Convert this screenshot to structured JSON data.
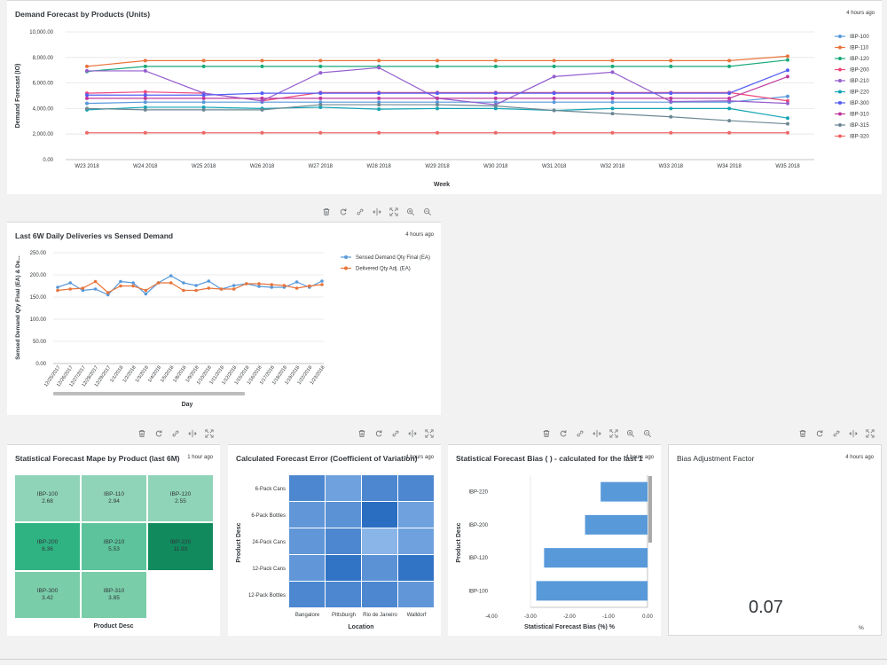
{
  "cards": {
    "demand": {
      "title": "Demand Forecast by Products (Units)",
      "timestamp": "4 hours ago"
    },
    "deliveries": {
      "title": "Last 6W Daily Deliveries vs Sensed Demand",
      "timestamp": "4 hours ago"
    },
    "mape": {
      "title": "Statistical Forecast Mape by Product (last 6M)",
      "timestamp": "1 hour ago"
    },
    "error": {
      "title": "Calculated Forecast Error (Coefficient of Variation)",
      "timestamp": "4 hours ago"
    },
    "bias": {
      "title": "Statistical Forecast Bias ( ) - calculated for the last 1",
      "timestamp": "4 hours ago"
    },
    "adjust": {
      "title": "Bias Adjustment Factor",
      "timestamp": "4 hours ago",
      "value": "0.07",
      "unit": "%"
    }
  },
  "toolbar_icons": {
    "full": [
      "delete-icon",
      "refresh-icon",
      "link-icon",
      "resize-icon",
      "fullscreen-icon",
      "zoom-in-icon",
      "zoom-out-icon"
    ],
    "basic": [
      "delete-icon",
      "refresh-icon",
      "link-icon",
      "resize-icon",
      "fullscreen-icon"
    ]
  },
  "colors": {
    "IBP-100": "#5899da",
    "IBP-110": "#e8743b",
    "IBP-120": "#19a979",
    "IBP-200": "#ed4a7b",
    "IBP-210": "#945ecf",
    "IBP-220": "#13a4b4",
    "IBP-300": "#525df4",
    "IBP-310": "#bf399e",
    "IBP-315": "#6c8893",
    "IBP-320": "#ee6868",
    "sensed": "#5899da",
    "delivered": "#e8743b",
    "bias_bar": "#5899da"
  },
  "chart_data": [
    {
      "type": "line",
      "title": "Demand Forecast by Products (Units)",
      "xlabel": "Week",
      "ylabel": "Demand Forecast (IO)",
      "ylim": [
        0,
        10000
      ],
      "yticks": [
        "0.00",
        "2,000.00",
        "4,000.00",
        "6,000.00",
        "8,000.00",
        "10,000.00"
      ],
      "categories": [
        "W23 2018",
        "W24 2018",
        "W25 2018",
        "W26 2018",
        "W27 2018",
        "W28 2018",
        "W29 2018",
        "W30 2018",
        "W31 2018",
        "W32 2018",
        "W33 2018",
        "W34 2018",
        "W35 2018"
      ],
      "legend": "right",
      "series": [
        {
          "name": "IBP-100",
          "values": [
            4400,
            4500,
            4500,
            4500,
            4500,
            4500,
            4500,
            4500,
            4500,
            4500,
            4500,
            4500,
            4950
          ]
        },
        {
          "name": "IBP-110",
          "values": [
            7300,
            7750,
            7750,
            7750,
            7750,
            7750,
            7750,
            7750,
            7750,
            7750,
            7750,
            7750,
            8100
          ]
        },
        {
          "name": "IBP-120",
          "values": [
            6900,
            7300,
            7300,
            7300,
            7300,
            7300,
            7300,
            7300,
            7300,
            7300,
            7300,
            7300,
            7800
          ]
        },
        {
          "name": "IBP-200",
          "values": [
            5200,
            5300,
            5200,
            4600,
            5250,
            5250,
            5250,
            5250,
            5250,
            5250,
            5250,
            5250,
            4600
          ]
        },
        {
          "name": "IBP-210",
          "values": [
            6950,
            6950,
            5200,
            4600,
            6800,
            7200,
            4800,
            4300,
            6500,
            6850,
            4550,
            4600,
            4400
          ]
        },
        {
          "name": "IBP-220",
          "values": [
            3900,
            4100,
            4100,
            4000,
            4100,
            3950,
            4000,
            4000,
            3850,
            4000,
            4000,
            4000,
            3250
          ]
        },
        {
          "name": "IBP-300",
          "values": [
            5050,
            5050,
            5050,
            5200,
            5200,
            5200,
            5200,
            5200,
            5200,
            5200,
            5200,
            5200,
            7000
          ]
        },
        {
          "name": "IBP-310",
          "values": [
            4800,
            4800,
            4800,
            4800,
            4800,
            4800,
            4800,
            4800,
            4800,
            4800,
            4800,
            4800,
            6500
          ]
        },
        {
          "name": "IBP-315",
          "values": [
            4000,
            3900,
            3900,
            3900,
            4300,
            4300,
            4300,
            4200,
            3850,
            3600,
            3350,
            3050,
            2800
          ]
        },
        {
          "name": "IBP-320",
          "values": [
            2100,
            2100,
            2100,
            2100,
            2100,
            2100,
            2100,
            2100,
            2100,
            2100,
            2100,
            2100,
            2100
          ]
        }
      ]
    },
    {
      "type": "line",
      "title": "Last 6W Daily Deliveries vs Sensed Demand",
      "xlabel": "Day",
      "ylabel": "Sensed Demand Qty Final (EA) & De...",
      "ylim": [
        0,
        250
      ],
      "yticks": [
        "0.00",
        "50.00",
        "100.00",
        "150.00",
        "200.00",
        "250.00"
      ],
      "legend": "right",
      "x": [
        "12/25/2017",
        "12/26/2017",
        "12/27/2017",
        "12/28/2017",
        "12/29/2017",
        "1/1/2018",
        "1/2/2018",
        "1/3/2018",
        "1/4/2018",
        "1/5/2018",
        "1/8/2018",
        "1/9/2018",
        "1/10/2018",
        "1/11/2018",
        "1/12/2018",
        "1/15/2018",
        "1/16/2018",
        "1/17/2018",
        "1/18/2018",
        "1/19/2018",
        "1/22/2018",
        "1/23/2018"
      ],
      "series": [
        {
          "name": "Sensed Demand Qty Final (EA)",
          "values": [
            172,
            182,
            165,
            168,
            155,
            185,
            182,
            157,
            182,
            198,
            182,
            176,
            186,
            168,
            176,
            180,
            174,
            172,
            172,
            184,
            172,
            186
          ]
        },
        {
          "name": "Delivered Qty Adj. (EA)",
          "values": [
            165,
            168,
            170,
            185,
            160,
            175,
            175,
            165,
            182,
            182,
            165,
            165,
            170,
            168,
            168,
            180,
            180,
            178,
            176,
            170,
            175,
            178
          ]
        }
      ]
    },
    {
      "type": "heatmap",
      "title": "Statistical Forecast Mape by Product (last 6M)",
      "xlabel": "Product Desc",
      "cells": [
        {
          "label": "IBP-100",
          "value": "2.68"
        },
        {
          "label": "IBP-110",
          "value": "2.94"
        },
        {
          "label": "IBP-120",
          "value": "2.55"
        },
        {
          "label": "IBP-200",
          "value": "6.36"
        },
        {
          "label": "IBP-210",
          "value": "5.53"
        },
        {
          "label": "IBP-220",
          "value": "11.93"
        },
        {
          "label": "IBP-300",
          "value": "3.42"
        },
        {
          "label": "IBP-310",
          "value": "3.85"
        }
      ]
    },
    {
      "type": "heatmap",
      "title": "Calculated Forecast Error (Coefficient of Variation)",
      "xlabel": "Location",
      "ylabel": "Product Desc",
      "x": [
        "Bangalore",
        "Pittsburgh",
        "Rio de Janeiro",
        "Walldorf"
      ],
      "y": [
        "6-Pack Cans",
        "6-Pack Bottles",
        "24-Pack Cans",
        "12-Pack Cans",
        "12-Pack Bottles"
      ],
      "values": [
        [
          0.6,
          0.35,
          0.6,
          0.6
        ],
        [
          0.45,
          0.5,
          0.85,
          0.35
        ],
        [
          0.45,
          0.6,
          0.15,
          0.35
        ],
        [
          0.45,
          0.8,
          0.5,
          0.8
        ],
        [
          0.6,
          0.6,
          0.6,
          0.45
        ]
      ]
    },
    {
      "type": "bar",
      "orientation": "horizontal",
      "title": "Statistical Forecast Bias ( ) - calculated for the last 1",
      "xlabel": "Statistical Forecast Bias (%) %",
      "ylabel": "Product Desc",
      "xlim": [
        -4,
        0
      ],
      "xticks": [
        "-4.00",
        "-3.00",
        "-2.00",
        "-1.00",
        "0.00"
      ],
      "categories": [
        "IBP-220",
        "IBP-200",
        "IBP-120",
        "IBP-100"
      ],
      "values": [
        -1.2,
        -1.6,
        -2.65,
        -2.85
      ]
    }
  ]
}
